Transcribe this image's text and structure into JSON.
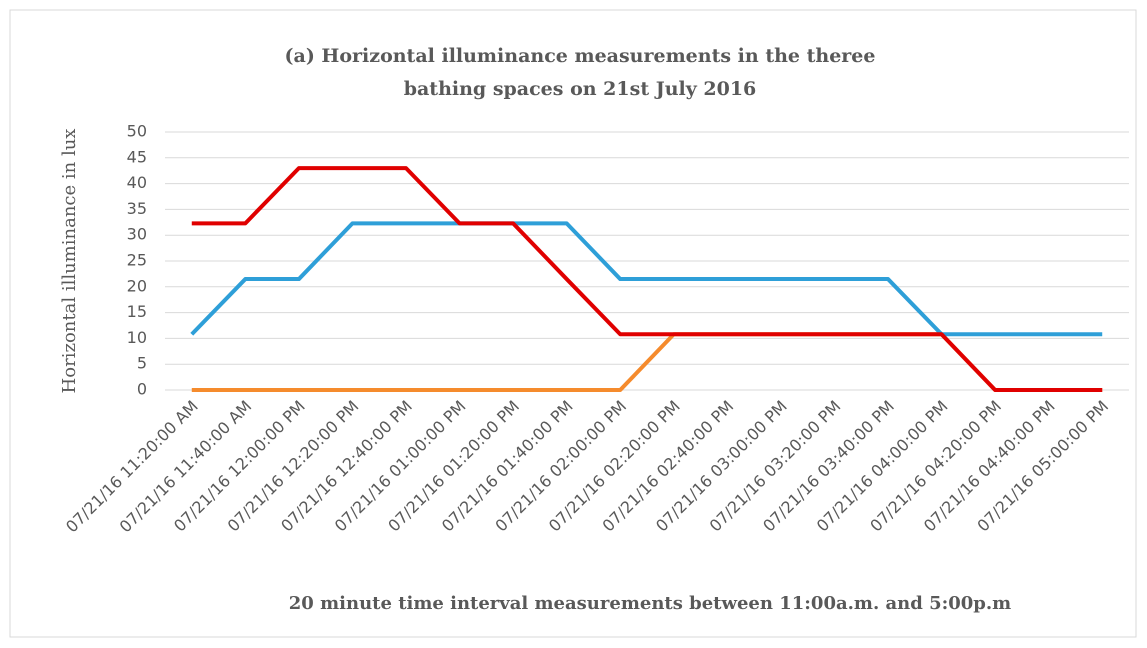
{
  "chart_data": {
    "type": "line",
    "title": "(a) Horizontal illuminance measurements in the theree bathing spaces on 21st July 2016",
    "xlabel": "20 minute time interval measurements between 11:00a.m. and 5:00p.m",
    "ylabel": "Horizontal illuminance in lux",
    "categories": [
      "07/21/16 11:20:00 AM",
      "07/21/16 11:40:00 AM",
      "07/21/16 12:00:00 PM",
      "07/21/16 12:20:00 PM",
      "07/21/16 12:40:00 PM",
      "07/21/16 01:00:00 PM",
      "07/21/16 01:20:00 PM",
      "07/21/16 01:40:00 PM",
      "07/21/16 02:00:00 PM",
      "07/21/16 02:20:00 PM",
      "07/21/16 02:40:00 PM",
      "07/21/16 03:00:00 PM",
      "07/21/16 03:20:00 PM",
      "07/21/16 03:40:00 PM",
      "07/21/16 04:00:00 PM",
      "07/21/16 04:20:00 PM",
      "07/21/16 04:40:00 PM",
      "07/21/16 05:00:00 PM"
    ],
    "series": [
      {
        "color": "#f58b2d",
        "values": [
          0,
          0,
          0,
          0,
          0,
          0,
          0,
          0,
          0,
          10.8,
          10.8,
          10.8,
          10.8,
          10.8,
          10.8,
          0,
          0,
          0
        ]
      },
      {
        "color": "#2e9fd8",
        "values": [
          10.8,
          21.5,
          21.5,
          32.3,
          32.3,
          32.3,
          32.3,
          32.3,
          21.5,
          21.5,
          21.5,
          21.5,
          21.5,
          21.5,
          10.8,
          10.8,
          10.8,
          10.8
        ]
      },
      {
        "color": "#e00000",
        "values": [
          32.3,
          32.3,
          43,
          43,
          43,
          32.3,
          32.3,
          21.5,
          10.8,
          10.8,
          10.8,
          10.8,
          10.8,
          10.8,
          10.8,
          0,
          0,
          0
        ]
      }
    ],
    "ylim": [
      0,
      50
    ],
    "yticks": [
      0,
      5,
      10,
      15,
      20,
      25,
      30,
      35,
      40,
      45,
      50
    ],
    "grid": true
  }
}
